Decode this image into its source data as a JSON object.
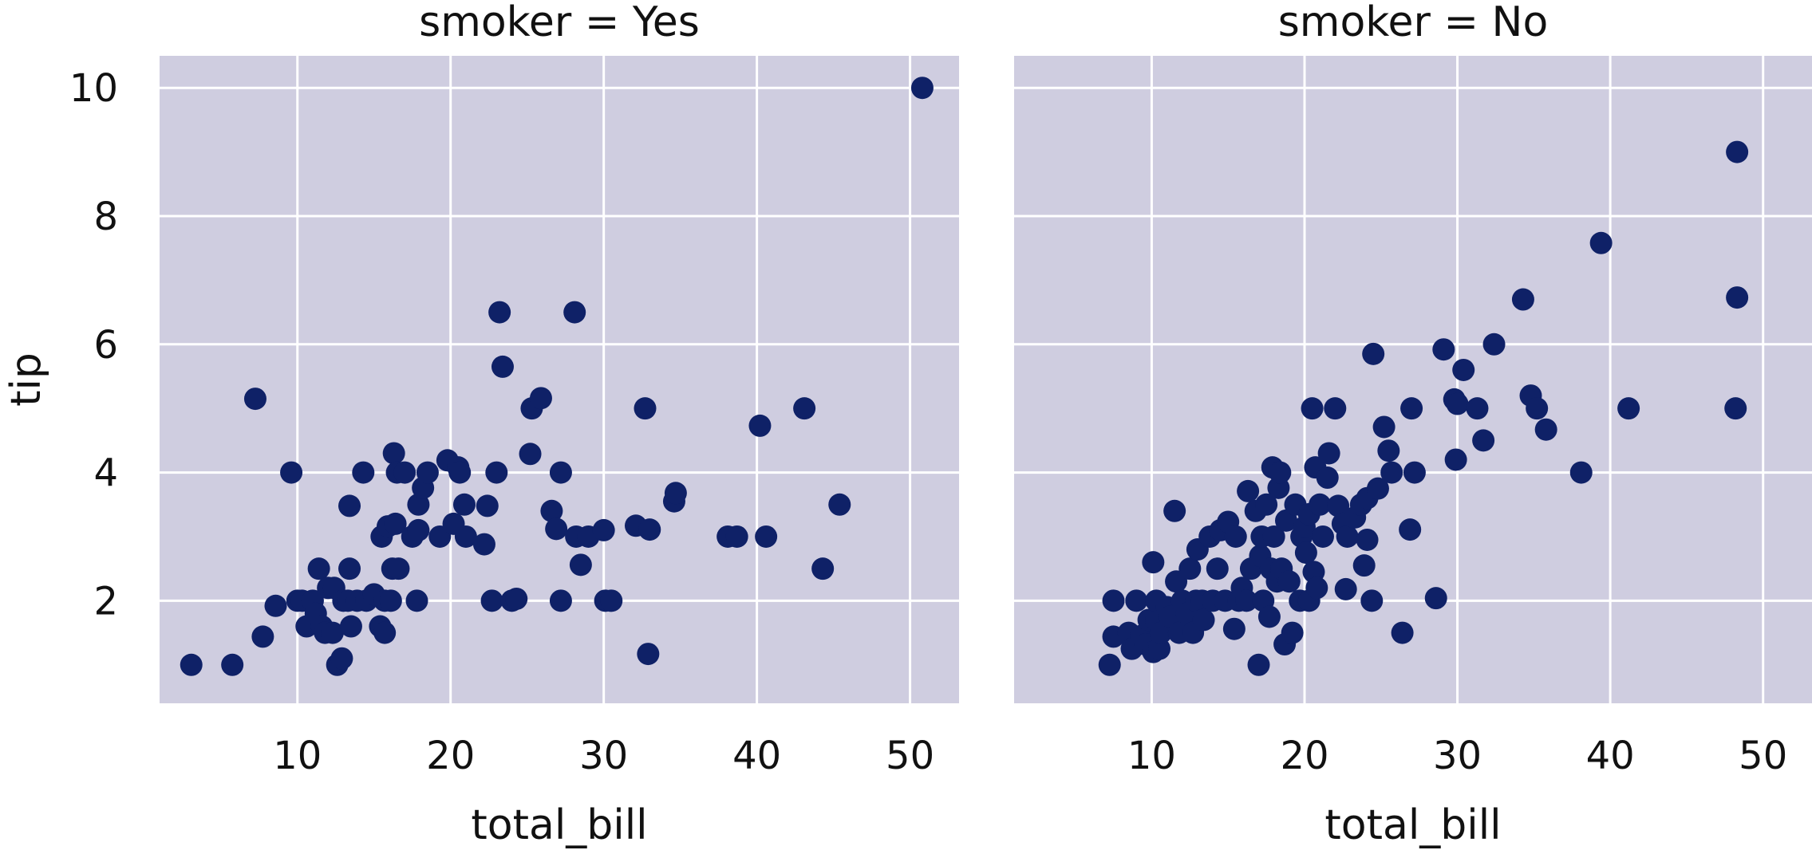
{
  "chart_data": [
    {
      "type": "scatter",
      "title": "smoker = Yes",
      "xlabel": "total_bill",
      "ylabel": "tip",
      "xlim": [
        1,
        53.2
      ],
      "ylim": [
        0.4,
        10.5
      ],
      "xticks": [
        10,
        20,
        30,
        40,
        50
      ],
      "yticks": [
        2,
        4,
        6,
        8,
        10
      ],
      "grid": true,
      "color": "#0f2167",
      "points": [
        [
          3.07,
          1.0
        ],
        [
          5.75,
          1.0
        ],
        [
          7.25,
          5.15
        ],
        [
          7.74,
          1.44
        ],
        [
          8.58,
          1.92
        ],
        [
          9.6,
          4.0
        ],
        [
          10.0,
          2.0
        ],
        [
          10.3,
          2.0
        ],
        [
          10.6,
          1.6
        ],
        [
          11.0,
          2.0
        ],
        [
          11.2,
          1.8
        ],
        [
          11.4,
          2.5
        ],
        [
          11.6,
          1.6
        ],
        [
          11.8,
          1.5
        ],
        [
          12.0,
          2.2
        ],
        [
          12.3,
          1.5
        ],
        [
          12.4,
          2.2
        ],
        [
          12.6,
          1.0
        ],
        [
          12.9,
          1.1
        ],
        [
          13.0,
          2.0
        ],
        [
          13.3,
          2.0
        ],
        [
          13.4,
          2.5
        ],
        [
          13.4,
          3.48
        ],
        [
          13.5,
          1.6
        ],
        [
          13.9,
          2.0
        ],
        [
          14.3,
          4.0
        ],
        [
          14.5,
          2.0
        ],
        [
          15.0,
          2.1
        ],
        [
          15.4,
          1.6
        ],
        [
          15.5,
          3.0
        ],
        [
          15.7,
          2.0
        ],
        [
          15.7,
          1.5
        ],
        [
          15.9,
          3.16
        ],
        [
          16.1,
          2.0
        ],
        [
          16.2,
          2.5
        ],
        [
          16.3,
          4.3
        ],
        [
          16.4,
          3.2
        ],
        [
          16.5,
          4.0
        ],
        [
          16.6,
          2.5
        ],
        [
          17.0,
          4.0
        ],
        [
          17.5,
          3.0
        ],
        [
          17.8,
          2.0
        ],
        [
          17.9,
          3.1
        ],
        [
          17.9,
          3.5
        ],
        [
          18.2,
          3.76
        ],
        [
          18.5,
          4.0
        ],
        [
          19.3,
          3.0
        ],
        [
          19.8,
          4.19
        ],
        [
          20.2,
          3.2
        ],
        [
          20.5,
          4.08
        ],
        [
          20.6,
          4.0
        ],
        [
          20.9,
          3.5
        ],
        [
          21.0,
          3.0
        ],
        [
          22.2,
          2.88
        ],
        [
          22.4,
          3.48
        ],
        [
          22.7,
          2.0
        ],
        [
          23.0,
          4.0
        ],
        [
          23.2,
          6.5
        ],
        [
          23.4,
          5.65
        ],
        [
          24.0,
          2.0
        ],
        [
          24.3,
          2.03
        ],
        [
          25.2,
          4.29
        ],
        [
          25.3,
          5.0
        ],
        [
          25.9,
          5.16
        ],
        [
          26.6,
          3.4
        ],
        [
          26.9,
          3.12
        ],
        [
          27.2,
          2.0
        ],
        [
          27.2,
          4.0
        ],
        [
          28.1,
          6.5
        ],
        [
          28.2,
          3.0
        ],
        [
          28.5,
          2.56
        ],
        [
          29.0,
          3.0
        ],
        [
          30.0,
          3.1
        ],
        [
          30.1,
          2.0
        ],
        [
          30.5,
          2.0
        ],
        [
          32.1,
          3.17
        ],
        [
          32.7,
          5.0
        ],
        [
          32.9,
          1.17
        ],
        [
          33.0,
          3.11
        ],
        [
          34.6,
          3.55
        ],
        [
          34.7,
          3.68
        ],
        [
          38.1,
          3.0
        ],
        [
          38.7,
          3.0
        ],
        [
          40.2,
          4.73
        ],
        [
          40.6,
          3.0
        ],
        [
          43.1,
          5.0
        ],
        [
          44.3,
          2.5
        ],
        [
          45.4,
          3.5
        ],
        [
          50.8,
          10.0
        ]
      ]
    },
    {
      "type": "scatter",
      "title": "smoker = No",
      "xlabel": "total_bill",
      "ylabel": "",
      "xlim": [
        1,
        53.2
      ],
      "ylim": [
        0.4,
        10.5
      ],
      "xticks": [
        10,
        20,
        30,
        40,
        50
      ],
      "yticks": [
        2,
        4,
        6,
        8,
        10
      ],
      "grid": true,
      "color": "#0f2167",
      "points": [
        [
          7.25,
          1.0
        ],
        [
          7.5,
          2.0
        ],
        [
          7.5,
          1.44
        ],
        [
          8.5,
          1.5
        ],
        [
          8.7,
          1.25
        ],
        [
          9.0,
          2.0
        ],
        [
          9.3,
          1.45
        ],
        [
          9.6,
          1.32
        ],
        [
          9.8,
          1.7
        ],
        [
          10.1,
          1.2
        ],
        [
          10.1,
          2.6
        ],
        [
          10.3,
          1.7
        ],
        [
          10.3,
          2.0
        ],
        [
          10.5,
          1.25
        ],
        [
          10.6,
          1.5
        ],
        [
          11.0,
          1.9
        ],
        [
          11.2,
          1.75
        ],
        [
          11.5,
          3.4
        ],
        [
          11.6,
          2.3
        ],
        [
          11.8,
          1.5
        ],
        [
          12.0,
          2.0
        ],
        [
          12.3,
          1.8
        ],
        [
          12.5,
          2.5
        ],
        [
          12.7,
          1.5
        ],
        [
          12.9,
          2.0
        ],
        [
          13.0,
          2.8
        ],
        [
          13.3,
          2.0
        ],
        [
          13.4,
          1.7
        ],
        [
          13.8,
          3.0
        ],
        [
          14.0,
          2.0
        ],
        [
          14.3,
          2.5
        ],
        [
          14.5,
          3.1
        ],
        [
          14.8,
          2.0
        ],
        [
          15.0,
          3.23
        ],
        [
          15.4,
          1.56
        ],
        [
          15.5,
          3.0
        ],
        [
          15.7,
          2.0
        ],
        [
          15.9,
          2.2
        ],
        [
          16.2,
          2.0
        ],
        [
          16.3,
          3.71
        ],
        [
          16.5,
          2.5
        ],
        [
          16.8,
          3.4
        ],
        [
          17.0,
          1.0
        ],
        [
          17.1,
          2.7
        ],
        [
          17.2,
          3.0
        ],
        [
          17.3,
          2.0
        ],
        [
          17.5,
          3.5
        ],
        [
          17.7,
          1.75
        ],
        [
          17.8,
          2.5
        ],
        [
          17.9,
          4.08
        ],
        [
          18.0,
          3.0
        ],
        [
          18.2,
          2.3
        ],
        [
          18.3,
          3.76
        ],
        [
          18.4,
          4.0
        ],
        [
          18.5,
          2.5
        ],
        [
          18.7,
          1.32
        ],
        [
          18.8,
          3.25
        ],
        [
          19.0,
          2.3
        ],
        [
          19.2,
          1.5
        ],
        [
          19.4,
          3.5
        ],
        [
          19.7,
          2.0
        ],
        [
          19.8,
          3.0
        ],
        [
          20.0,
          3.15
        ],
        [
          20.1,
          2.75
        ],
        [
          20.3,
          2.0
        ],
        [
          20.3,
          3.35
        ],
        [
          20.5,
          5.0
        ],
        [
          20.6,
          2.45
        ],
        [
          20.7,
          4.08
        ],
        [
          20.8,
          2.2
        ],
        [
          21.0,
          3.5
        ],
        [
          21.2,
          3.0
        ],
        [
          21.5,
          3.92
        ],
        [
          21.6,
          4.3
        ],
        [
          22.0,
          5.0
        ],
        [
          22.2,
          3.48
        ],
        [
          22.5,
          3.2
        ],
        [
          22.7,
          2.18
        ],
        [
          22.8,
          3.0
        ],
        [
          23.3,
          3.3
        ],
        [
          23.7,
          3.5
        ],
        [
          23.9,
          2.55
        ],
        [
          24.1,
          2.95
        ],
        [
          24.1,
          3.6
        ],
        [
          24.4,
          2.0
        ],
        [
          24.5,
          5.85
        ],
        [
          24.8,
          3.75
        ],
        [
          25.2,
          4.71
        ],
        [
          25.5,
          4.34
        ],
        [
          25.7,
          4.0
        ],
        [
          26.4,
          1.5
        ],
        [
          26.9,
          3.11
        ],
        [
          27.0,
          5.0
        ],
        [
          27.2,
          4.0
        ],
        [
          28.6,
          2.04
        ],
        [
          29.1,
          5.92
        ],
        [
          29.8,
          5.14
        ],
        [
          29.9,
          4.2
        ],
        [
          30.0,
          5.07
        ],
        [
          30.4,
          5.6
        ],
        [
          31.3,
          5.0
        ],
        [
          31.7,
          4.5
        ],
        [
          32.4,
          6.0
        ],
        [
          34.3,
          6.7
        ],
        [
          34.8,
          5.2
        ],
        [
          35.2,
          5.0
        ],
        [
          35.8,
          4.67
        ],
        [
          38.1,
          4.0
        ],
        [
          39.4,
          7.58
        ],
        [
          41.2,
          5.0
        ],
        [
          48.2,
          5.0
        ],
        [
          48.3,
          6.73
        ],
        [
          48.3,
          9.0
        ]
      ]
    }
  ]
}
